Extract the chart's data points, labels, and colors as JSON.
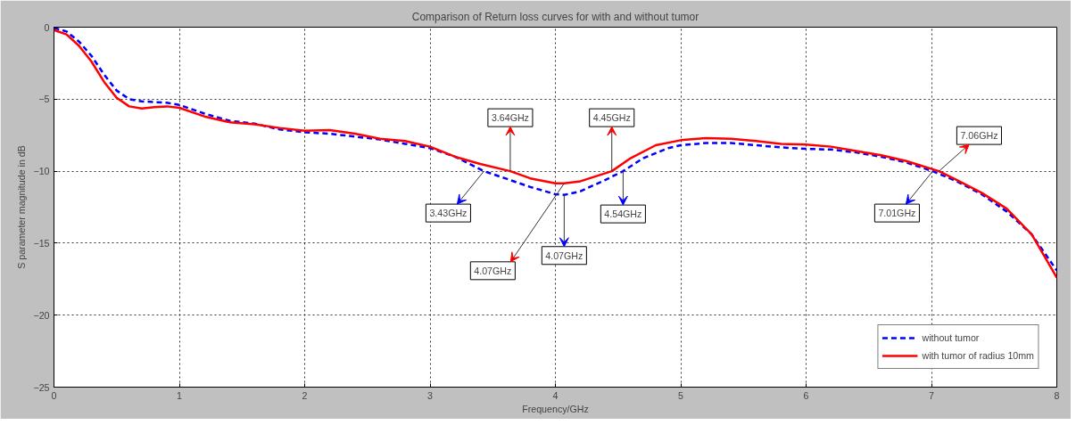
{
  "chart_data": {
    "type": "line",
    "title": "Comparison of Return loss curves for with and without tumor",
    "xlabel": "Frequency/GHz",
    "ylabel": "S parameter magnitude in dB",
    "xlim": [
      0,
      8
    ],
    "ylim": [
      -25,
      0
    ],
    "xticks": [
      0,
      1,
      2,
      3,
      4,
      5,
      6,
      7,
      8
    ],
    "yticks": [
      -25,
      -20,
      -15,
      -10,
      -5,
      0
    ],
    "grid": true,
    "legend": "bottom right",
    "series": [
      {
        "name": "without tumor",
        "color": "#0000ff",
        "line_style": "dashed",
        "x": [
          0,
          0.1,
          0.2,
          0.3,
          0.4,
          0.5,
          0.6,
          0.7,
          0.8,
          0.9,
          1.0,
          1.2,
          1.4,
          1.6,
          1.8,
          2.0,
          2.2,
          2.4,
          2.6,
          2.8,
          3.0,
          3.2,
          3.43,
          3.6,
          3.8,
          4.0,
          4.07,
          4.2,
          4.4,
          4.54,
          4.7,
          4.9,
          5.0,
          5.2,
          5.4,
          5.6,
          5.8,
          6.0,
          6.2,
          6.4,
          6.6,
          6.8,
          7.01,
          7.2,
          7.4,
          7.6,
          7.8,
          8.0
        ],
        "values": [
          -0.05,
          -0.3,
          -1.0,
          -2.0,
          -3.3,
          -4.4,
          -5.0,
          -5.15,
          -5.2,
          -5.25,
          -5.4,
          -6.0,
          -6.5,
          -6.7,
          -7.1,
          -7.3,
          -7.4,
          -7.6,
          -7.8,
          -8.1,
          -8.4,
          -9.0,
          -10.0,
          -10.5,
          -11.1,
          -11.6,
          -11.65,
          -11.4,
          -10.6,
          -10.0,
          -9.1,
          -8.4,
          -8.2,
          -8.05,
          -8.05,
          -8.2,
          -8.35,
          -8.45,
          -8.5,
          -8.7,
          -9.0,
          -9.4,
          -10.0,
          -10.7,
          -11.6,
          -12.8,
          -14.4,
          -16.9
        ]
      },
      {
        "name": "with tumor of radius 10mm",
        "color": "#ff0000",
        "line_style": "solid",
        "x": [
          0,
          0.1,
          0.2,
          0.3,
          0.4,
          0.5,
          0.6,
          0.7,
          0.8,
          0.9,
          1.0,
          1.2,
          1.4,
          1.6,
          1.8,
          2.0,
          2.2,
          2.4,
          2.6,
          2.8,
          3.0,
          3.2,
          3.4,
          3.64,
          3.8,
          4.0,
          4.07,
          4.2,
          4.45,
          4.6,
          4.8,
          5.0,
          5.2,
          5.4,
          5.6,
          5.8,
          6.0,
          6.2,
          6.4,
          6.6,
          6.8,
          7.06,
          7.2,
          7.4,
          7.6,
          7.8,
          8.0
        ],
        "values": [
          -0.2,
          -0.5,
          -1.3,
          -2.4,
          -3.8,
          -4.9,
          -5.5,
          -5.65,
          -5.55,
          -5.5,
          -5.6,
          -6.2,
          -6.6,
          -6.75,
          -7.0,
          -7.2,
          -7.15,
          -7.4,
          -7.75,
          -7.9,
          -8.3,
          -9.0,
          -9.5,
          -10.0,
          -10.5,
          -10.85,
          -10.85,
          -10.7,
          -10.0,
          -9.1,
          -8.2,
          -7.85,
          -7.7,
          -7.75,
          -7.9,
          -8.1,
          -8.15,
          -8.3,
          -8.6,
          -8.9,
          -9.3,
          -10.0,
          -10.6,
          -11.5,
          -12.6,
          -14.4,
          -17.4
        ]
      }
    ],
    "annotations": [
      {
        "text": "3.64GHz",
        "x": 3.64,
        "y": -10.0
      },
      {
        "text": "3.43GHz",
        "x": 3.43,
        "y": -10.0
      },
      {
        "text": "4.07GHz",
        "x": 4.07,
        "y": -10.85
      },
      {
        "text": "4.07GHz",
        "x": 4.07,
        "y": -11.65
      },
      {
        "text": "4.45GHz",
        "x": 4.45,
        "y": -10.0
      },
      {
        "text": "4.54GHz",
        "x": 4.54,
        "y": -10.0
      },
      {
        "text": "7.06GHz",
        "x": 7.06,
        "y": -10.0
      },
      {
        "text": "7.01GHz",
        "x": 7.01,
        "y": -10.0
      }
    ]
  }
}
